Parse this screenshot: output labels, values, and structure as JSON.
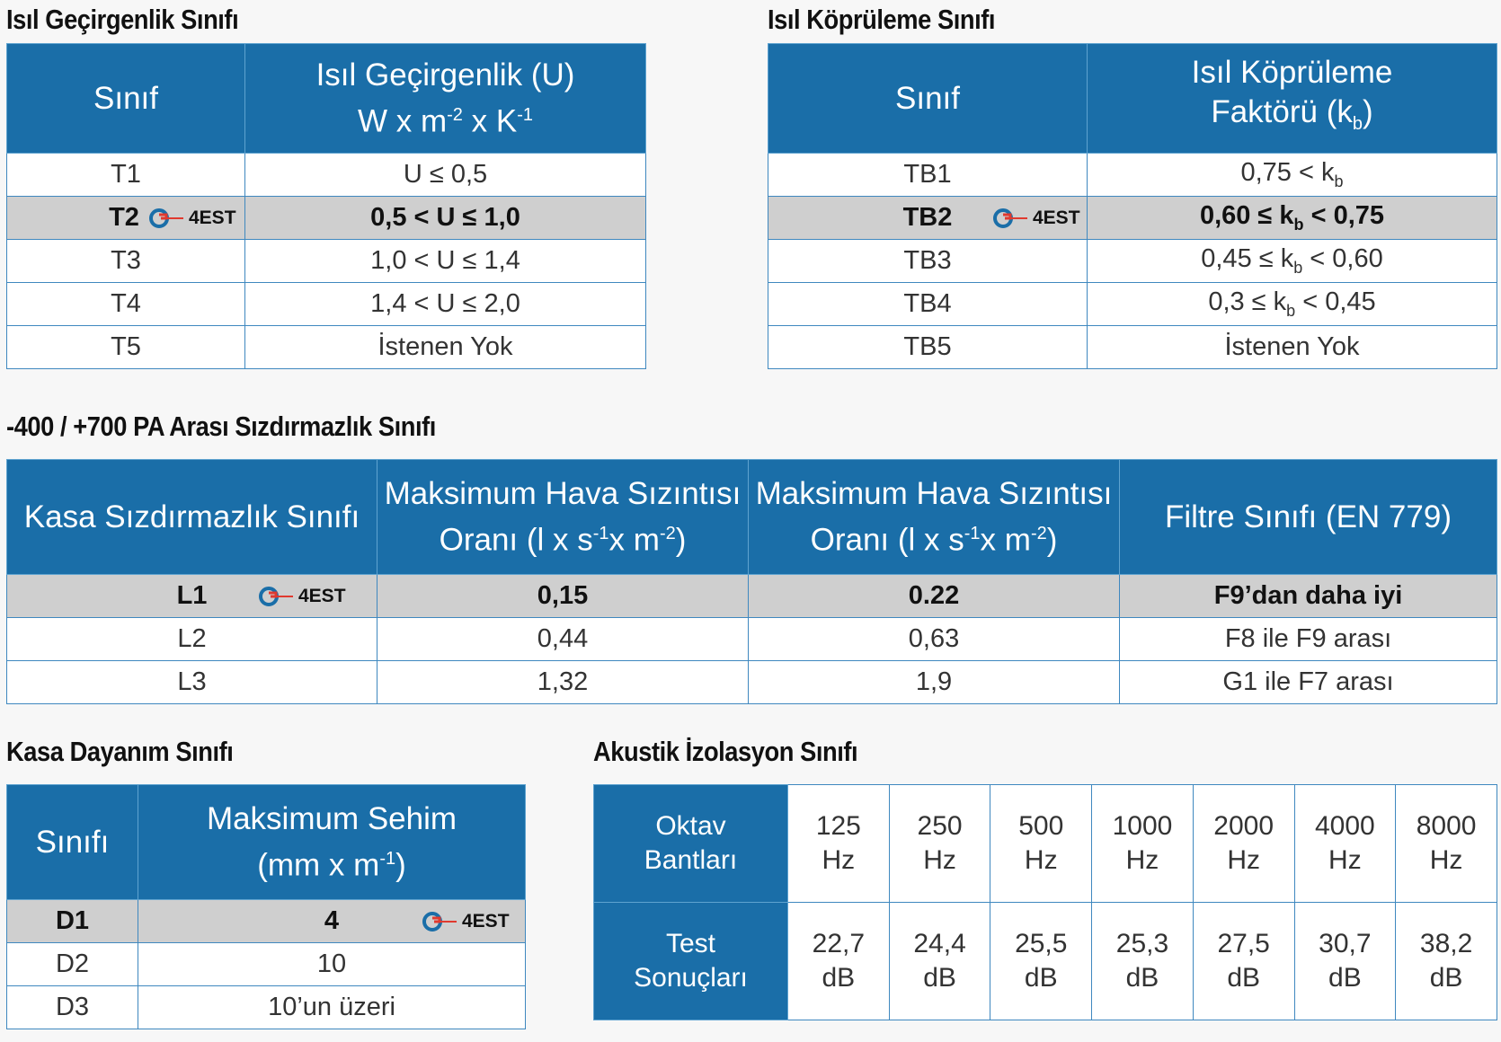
{
  "brand": {
    "logo_text": "4EST",
    "colors": {
      "header": "#1a6ea8",
      "highlight": "#cfcfcf",
      "border": "#3f88bf"
    }
  },
  "thermal": {
    "title": "Isıl Geçirgenlik Sınıfı",
    "col1": "Sınıf",
    "col2_line1": "Isıl Geçirgenlik (U)",
    "col2_line2_a": "W x m",
    "col2_sup1": "-2",
    "col2_line2_b": " x K",
    "col2_sup2": "-1",
    "rows": [
      {
        "cls": "T1",
        "val": "U ≤ 0,5"
      },
      {
        "cls": "T2",
        "val": "0,5 < U ≤ 1,0"
      },
      {
        "cls": "T3",
        "val": "1,0 < U ≤ 1,4"
      },
      {
        "cls": "T4",
        "val": "1,4 < U ≤ 2,0"
      },
      {
        "cls": "T5",
        "val": "İstenen Yok"
      }
    ]
  },
  "bridging": {
    "title": "Isıl Köprüleme Sınıfı",
    "col1": "Sınıf",
    "col2_line1": "Isıl Köprüleme",
    "col2_line2_a": "Faktörü (k",
    "col2_sub": "b",
    "col2_line2_b": ")",
    "rows": [
      {
        "cls": "TB1",
        "pre": "0,75 < k",
        "sub": "b",
        "post": ""
      },
      {
        "cls": "TB2",
        "pre": "0,60 ≤ k",
        "sub": "b",
        "post": " < 0,75"
      },
      {
        "cls": "TB3",
        "pre": "0,45 ≤ k",
        "sub": "b",
        "post": " < 0,60"
      },
      {
        "cls": "TB4",
        "pre": "0,3 ≤ k",
        "sub": "b",
        "post": " < 0,45"
      },
      {
        "cls": "TB5",
        "pre": "İstenen Yok",
        "sub": "",
        "post": ""
      }
    ]
  },
  "leakage": {
    "title": "-400 / +700 PA Arası Sızdırmazlık Sınıfı",
    "col1": "Kasa Sızdırmazlık Sınıfı",
    "col2_line1": "Maksimum Hava Sızıntısı",
    "col2_line2_a": "Oranı (l x s",
    "col2_sup1": "-1",
    "col2_line2_b": "x m",
    "col2_sup2": "-2",
    "col2_line2_c": ")",
    "col3_line1": "Maksimum Hava Sızıntısı",
    "col3_line2_a": "Oranı (l x s",
    "col3_sup1": "-1",
    "col3_line2_b": "x m",
    "col3_sup2": "-2",
    "col3_line2_c": ")",
    "col4": "Filtre Sınıfı (EN 779)",
    "rows": [
      {
        "cls": "L1",
        "a": "0,15",
        "b": "0.22",
        "f": "F9’dan daha iyi"
      },
      {
        "cls": "L2",
        "a": "0,44",
        "b": "0,63",
        "f": "F8 ile F9 arası"
      },
      {
        "cls": "L3",
        "a": "1,32",
        "b": "1,9",
        "f": "G1 ile F7 arası"
      }
    ]
  },
  "strength": {
    "title": "Kasa Dayanım Sınıfı",
    "col1": "Sınıfı",
    "col2_line1": "Maksimum Sehim",
    "col2_line2_a": "(mm x m",
    "col2_sup": "-1",
    "col2_line2_b": ")",
    "rows": [
      {
        "cls": "D1",
        "val": "4"
      },
      {
        "cls": "D2",
        "val": "10"
      },
      {
        "cls": "D3",
        "val": "10’un üzeri"
      }
    ]
  },
  "acoustic": {
    "title": "Akustik İzolasyon Sınıfı",
    "row1_label_1": "Oktav",
    "row1_label_2": "Bantları",
    "row2_label_1": "Test",
    "row2_label_2": "Sonuçları",
    "freqs": [
      {
        "f": "125",
        "u": "Hz",
        "r": "22,7",
        "ru": "dB"
      },
      {
        "f": "250",
        "u": "Hz",
        "r": "24,4",
        "ru": "dB"
      },
      {
        "f": "500",
        "u": "Hz",
        "r": "25,5",
        "ru": "dB"
      },
      {
        "f": "1000",
        "u": "Hz",
        "r": "25,3",
        "ru": "dB"
      },
      {
        "f": "2000",
        "u": "Hz",
        "r": "27,5",
        "ru": "dB"
      },
      {
        "f": "4000",
        "u": "Hz",
        "r": "30,7",
        "ru": "dB"
      },
      {
        "f": "8000",
        "u": "Hz",
        "r": "38,2",
        "ru": "dB"
      }
    ]
  }
}
